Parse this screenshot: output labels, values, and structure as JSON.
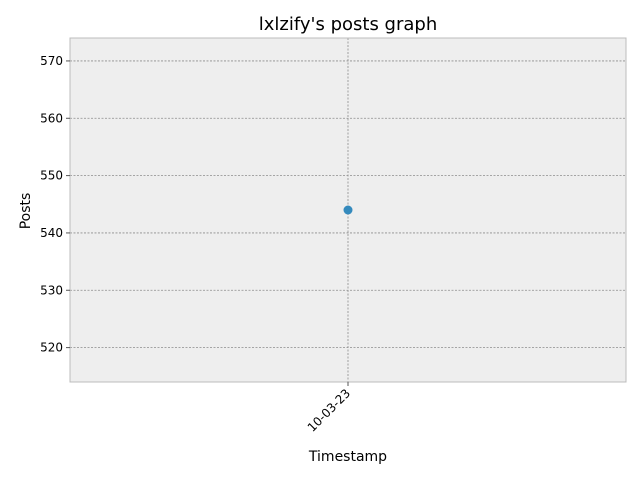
{
  "chart_data": {
    "type": "scatter",
    "title": "lxlzify's posts graph",
    "xlabel": "Timestamp",
    "ylabel": "Posts",
    "x_categories": [
      "10-03-23"
    ],
    "series": [
      {
        "x": [
          "10-03-23"
        ],
        "values": [
          544
        ],
        "color": "#348ABD"
      }
    ],
    "ylim": [
      514,
      574
    ],
    "yticks": [
      520,
      530,
      540,
      550,
      560,
      570
    ],
    "grid": true,
    "background": "#EEEEEE",
    "grid_color": "#8c8c8c",
    "spine_color": "#BCBCBC"
  }
}
